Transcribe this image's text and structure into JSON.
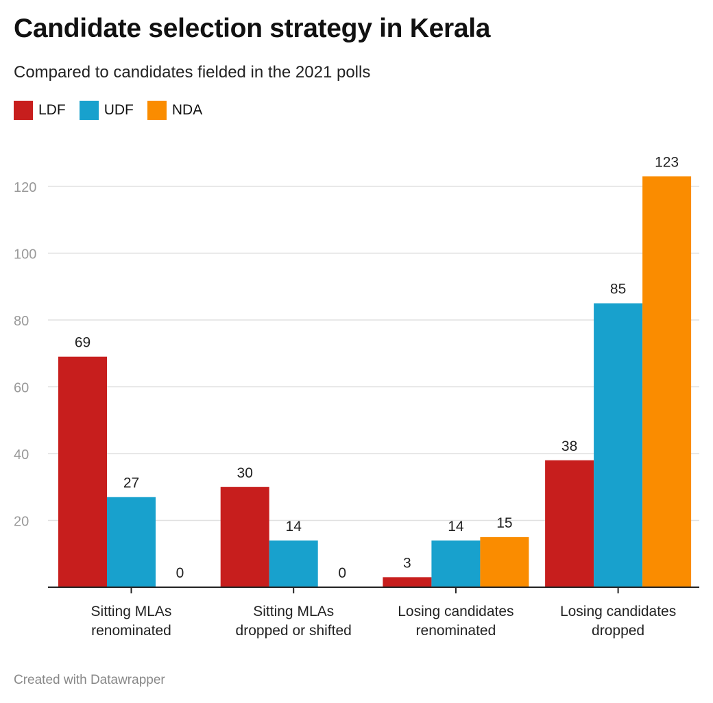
{
  "chart_data": {
    "type": "bar",
    "title": "Candidate selection strategy in Kerala",
    "subtitle": "Compared to candidates fielded in the 2021 polls",
    "categories": [
      [
        "Sitting MLAs",
        "renominated"
      ],
      [
        "Sitting MLAs",
        "dropped or shifted"
      ],
      [
        "Losing candidates",
        "renominated"
      ],
      [
        "Losing candidates",
        "dropped"
      ]
    ],
    "series": [
      {
        "name": "LDF",
        "color": "#c71e1d",
        "values": [
          69,
          30,
          3,
          38
        ]
      },
      {
        "name": "UDF",
        "color": "#18a1cd",
        "values": [
          27,
          14,
          14,
          85
        ]
      },
      {
        "name": "NDA",
        "color": "#fa8c00",
        "values": [
          0,
          0,
          15,
          123
        ]
      }
    ],
    "yticks": [
      20,
      40,
      60,
      80,
      100,
      120
    ],
    "ylim": [
      0,
      130
    ],
    "grid": true,
    "legend_position": "top-left",
    "xlabel": "",
    "ylabel": ""
  },
  "footer": "Created with Datawrapper"
}
